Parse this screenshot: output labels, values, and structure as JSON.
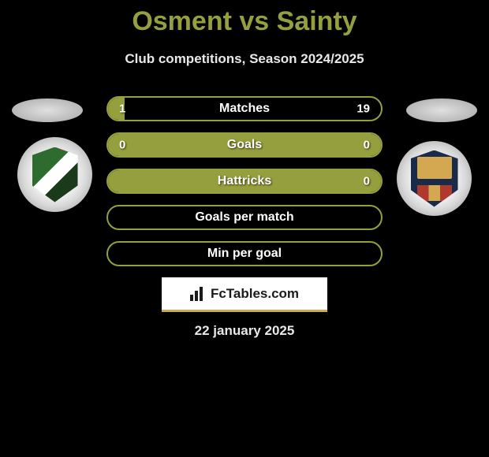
{
  "title": "Osment vs Sainty",
  "subtitle": "Club competitions, Season 2024/2025",
  "accent_color": "#969f3e",
  "background_color": "#000000",
  "text_color": "#ffffff",
  "stats": [
    {
      "label": "Matches",
      "left_value": "1",
      "right_value": "19",
      "left_fill_pct": 6,
      "right_fill_pct": 0
    },
    {
      "label": "Goals",
      "left_value": "0",
      "right_value": "0",
      "left_fill_pct": 100,
      "right_fill_pct": 0
    },
    {
      "label": "Hattricks",
      "left_value": "",
      "right_value": "0",
      "left_fill_pct": 100,
      "right_fill_pct": 0
    },
    {
      "label": "Goals per match",
      "left_value": "",
      "right_value": "",
      "left_fill_pct": 0,
      "right_fill_pct": 0
    },
    {
      "label": "Min per goal",
      "left_value": "",
      "right_value": "",
      "left_fill_pct": 0,
      "right_fill_pct": 0
    }
  ],
  "brand": "FcTables.com",
  "date": "22 january 2025",
  "players": {
    "left": "Osment",
    "right": "Sainty"
  }
}
